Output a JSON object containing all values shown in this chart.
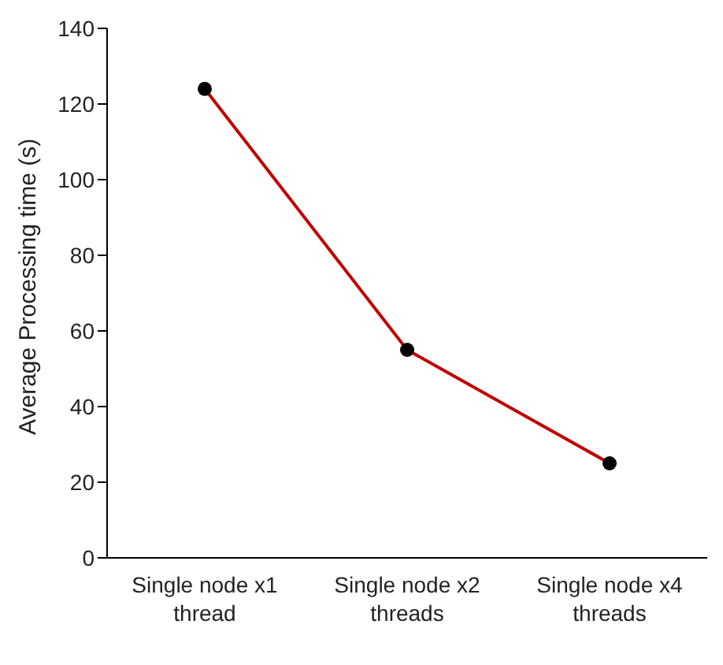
{
  "chart_data": {
    "type": "line",
    "ylabel": "Average Processing time (s)",
    "categories": [
      "Single node x1 thread",
      "Single node x2 threads",
      "Single node x4 threads"
    ],
    "series": [
      {
        "color": "#c00000",
        "values": [
          124,
          55,
          25
        ]
      }
    ],
    "ylim": [
      0,
      140
    ],
    "yticks": [
      0,
      20,
      40,
      60,
      80,
      100,
      120,
      140
    ],
    "grid": false,
    "legend": false,
    "marker": "circle",
    "line_style": "solid"
  }
}
